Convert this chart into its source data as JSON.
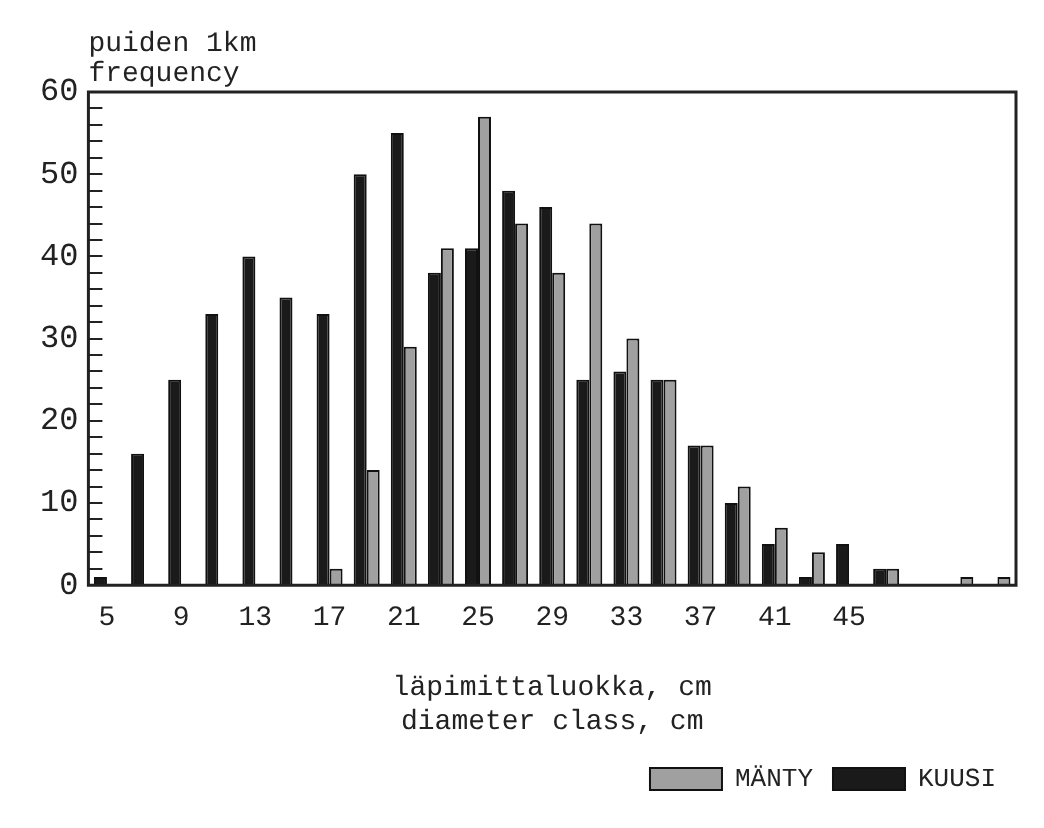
{
  "chart_data": {
    "type": "bar",
    "ylabel": "puiden 1km\nfrequency",
    "xlabel": "läpimittaluokka, cm\ndiameter class, cm",
    "categories": [
      "5",
      null,
      "9",
      null,
      "13",
      null,
      "17",
      null,
      "21",
      null,
      "25",
      null,
      "29",
      null,
      "33",
      null,
      "37",
      null,
      "41",
      null,
      "45",
      null,
      null,
      null,
      null
    ],
    "series": [
      {
        "name": "KUUSI",
        "color": "#1a1a1a",
        "values": [
          1,
          16,
          25,
          33,
          40,
          35,
          33,
          50,
          55,
          38,
          41,
          48,
          46,
          25,
          26,
          25,
          17,
          10,
          5,
          1,
          5,
          2,
          0,
          0,
          0
        ]
      },
      {
        "name": "MÄNTY",
        "color": "#a0a0a0",
        "values": [
          0,
          0,
          0,
          0,
          0,
          0,
          2,
          14,
          29,
          41,
          57,
          44,
          38,
          44,
          30,
          25,
          17,
          12,
          7,
          4,
          0,
          2,
          0,
          1,
          1
        ]
      }
    ],
    "ylim": [
      0,
      60
    ],
    "yticks": [
      0,
      {
        "value": 2,
        "label": null
      },
      {
        "value": 4,
        "label": null
      },
      {
        "value": 6,
        "label": null
      },
      {
        "value": 8,
        "label": null
      },
      10,
      {
        "value": 12,
        "label": null
      },
      {
        "value": 14,
        "label": null
      },
      {
        "value": 16,
        "label": null
      },
      {
        "value": 18,
        "label": null
      },
      20,
      {
        "value": 22,
        "label": null
      },
      {
        "value": 24,
        "label": null
      },
      {
        "value": 26,
        "label": null
      },
      {
        "value": 28,
        "label": null
      },
      30,
      {
        "value": 32,
        "label": null
      },
      {
        "value": 34,
        "label": null
      },
      {
        "value": 36,
        "label": null
      },
      {
        "value": 38,
        "label": null
      },
      40,
      {
        "value": 42,
        "label": null
      },
      {
        "value": 44,
        "label": null
      },
      {
        "value": 46,
        "label": null
      },
      {
        "value": 48,
        "label": null
      },
      50,
      {
        "value": 52,
        "label": null
      },
      {
        "value": 54,
        "label": null
      },
      {
        "value": 56,
        "label": null
      },
      {
        "value": 58,
        "label": null
      },
      60
    ],
    "grid": false,
    "legend": "bottom right"
  }
}
